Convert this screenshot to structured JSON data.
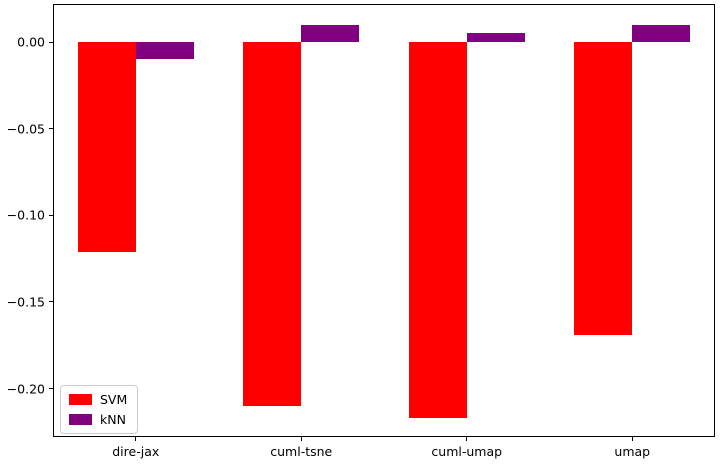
{
  "chart_data": {
    "type": "bar",
    "categories": [
      "dire-jax",
      "cuml-tsne",
      "cuml-umap",
      "umap"
    ],
    "series": [
      {
        "name": "SVM",
        "color": "#ff0000",
        "values": [
          -0.121,
          -0.21,
          -0.217,
          -0.169
        ]
      },
      {
        "name": "kNN",
        "color": "#800080",
        "values": [
          -0.01,
          0.01,
          0.005,
          0.01
        ]
      }
    ],
    "title": "",
    "xlabel": "",
    "ylabel": "",
    "ylim": [
      -0.228,
      0.022
    ],
    "yticks": [
      0.0,
      -0.05,
      -0.1,
      -0.15,
      -0.2
    ],
    "ytick_labels": [
      "0.00",
      "−0.05",
      "−0.10",
      "−0.15",
      "−0.20"
    ],
    "bar_width": 0.35,
    "grid": false,
    "legend": {
      "position": "lower left",
      "entries": [
        "SVM",
        "kNN"
      ]
    }
  }
}
